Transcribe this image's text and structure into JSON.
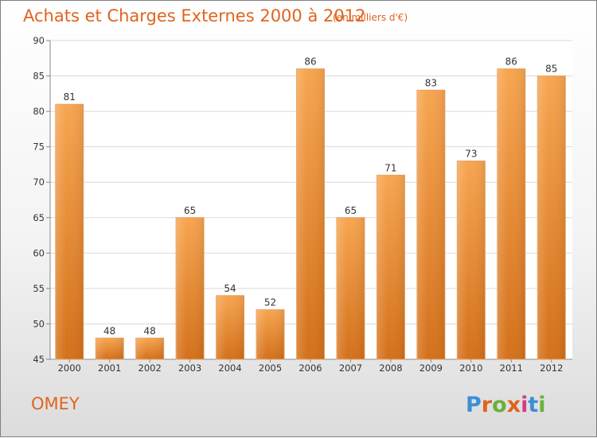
{
  "chart_data": {
    "type": "bar",
    "title": "Achats et Charges Externes 2000 à 2012",
    "subtitle": "(en milliers d'€)",
    "categories": [
      "2000",
      "2001",
      "2002",
      "2003",
      "2004",
      "2005",
      "2006",
      "2007",
      "2008",
      "2009",
      "2010",
      "2011",
      "2012"
    ],
    "values": [
      81,
      48,
      48,
      65,
      54,
      52,
      86,
      65,
      71,
      83,
      73,
      86,
      85
    ],
    "ylim": [
      45,
      90
    ],
    "yticks": [
      45,
      50,
      55,
      60,
      65,
      70,
      75,
      80,
      85,
      90
    ],
    "grid": true,
    "bar_color": "#f39a3c",
    "bar_color_dark": "#d4701a"
  },
  "footer": {
    "commune": "OMEY",
    "logo": "Proxiti",
    "logo_colors": [
      "#3c8fd6",
      "#e0641e",
      "#69b13a",
      "#e0641e",
      "#d13c8a",
      "#3c8fd6",
      "#69b13a"
    ]
  }
}
